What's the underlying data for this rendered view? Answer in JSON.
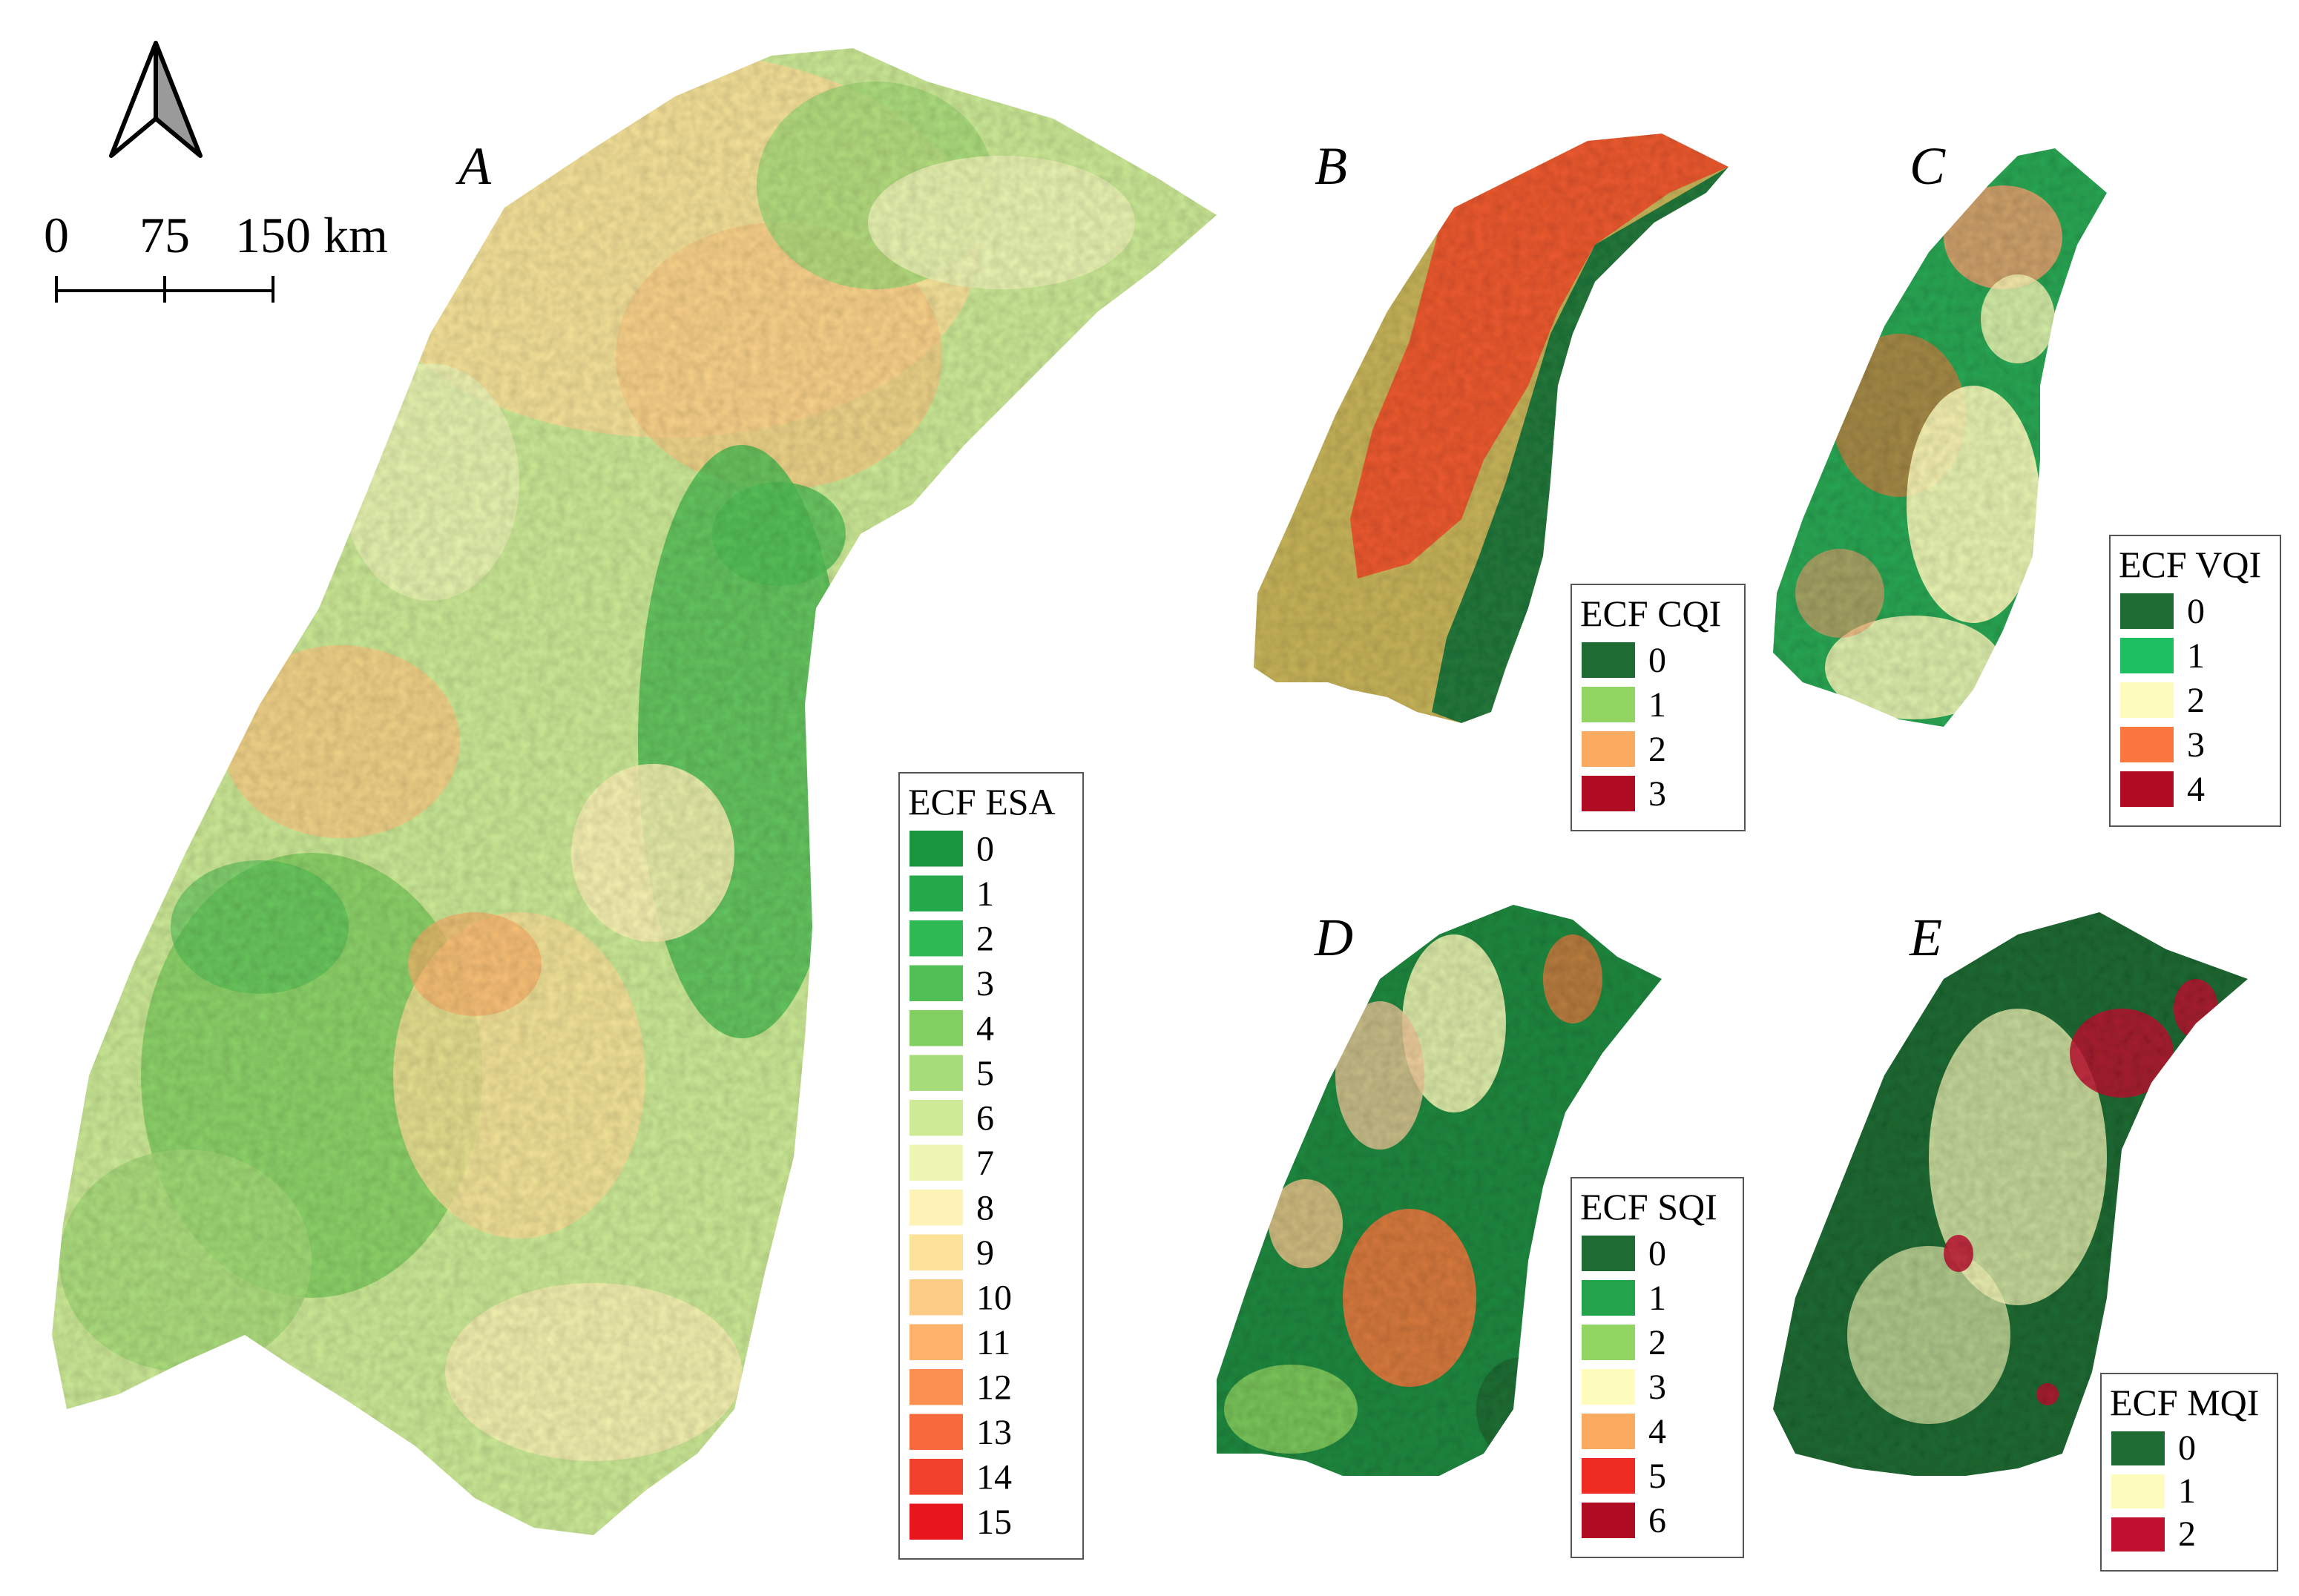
{
  "north_arrow": {
    "icon": "north-arrow-icon"
  },
  "scale_bar": {
    "labels": [
      "0",
      "75",
      "150 km"
    ]
  },
  "panels": [
    {
      "id": "A",
      "letter": "A",
      "legend": {
        "title": "ECF ESA",
        "items": [
          {
            "label": "0",
            "color": "#1a9641"
          },
          {
            "label": "1",
            "color": "#23a84a"
          },
          {
            "label": "2",
            "color": "#2fb955"
          },
          {
            "label": "3",
            "color": "#52bf56"
          },
          {
            "label": "4",
            "color": "#82d062"
          },
          {
            "label": "5",
            "color": "#a6dc79"
          },
          {
            "label": "6",
            "color": "#cdeb97"
          },
          {
            "label": "7",
            "color": "#eef6b6"
          },
          {
            "label": "8",
            "color": "#fef3b6"
          },
          {
            "label": "9",
            "color": "#fde29a"
          },
          {
            "label": "10",
            "color": "#fdcc84"
          },
          {
            "label": "11",
            "color": "#fcb26a"
          },
          {
            "label": "12",
            "color": "#fb9052"
          },
          {
            "label": "13",
            "color": "#f86a3e"
          },
          {
            "label": "14",
            "color": "#f1412c"
          },
          {
            "label": "15",
            "color": "#e8151c"
          }
        ]
      }
    },
    {
      "id": "B",
      "letter": "B",
      "legend": {
        "title": "ECF CQI",
        "items": [
          {
            "label": "0",
            "color": "#1e6b34"
          },
          {
            "label": "1",
            "color": "#91d562"
          },
          {
            "label": "2",
            "color": "#fbab60"
          },
          {
            "label": "3",
            "color": "#b20c24"
          }
        ]
      }
    },
    {
      "id": "C",
      "letter": "C",
      "legend": {
        "title": "ECF VQI",
        "items": [
          {
            "label": "0",
            "color": "#1e6b34"
          },
          {
            "label": "1",
            "color": "#1dbf63"
          },
          {
            "label": "2",
            "color": "#fefcbc"
          },
          {
            "label": "3",
            "color": "#f9773e"
          },
          {
            "label": "4",
            "color": "#b20c24"
          }
        ]
      }
    },
    {
      "id": "D",
      "letter": "D",
      "legend": {
        "title": "ECF SQI",
        "items": [
          {
            "label": "0",
            "color": "#1e6b34"
          },
          {
            "label": "1",
            "color": "#23a44c"
          },
          {
            "label": "2",
            "color": "#91d562"
          },
          {
            "label": "3",
            "color": "#fefcbc"
          },
          {
            "label": "4",
            "color": "#fbab60"
          },
          {
            "label": "5",
            "color": "#ef2c22"
          },
          {
            "label": "6",
            "color": "#b20c24"
          }
        ]
      }
    },
    {
      "id": "E",
      "letter": "E",
      "legend": {
        "title": "ECF MQI",
        "items": [
          {
            "label": "0",
            "color": "#1e6b34"
          },
          {
            "label": "1",
            "color": "#fefcbc"
          },
          {
            "label": "2",
            "color": "#c01030"
          }
        ]
      }
    }
  ]
}
